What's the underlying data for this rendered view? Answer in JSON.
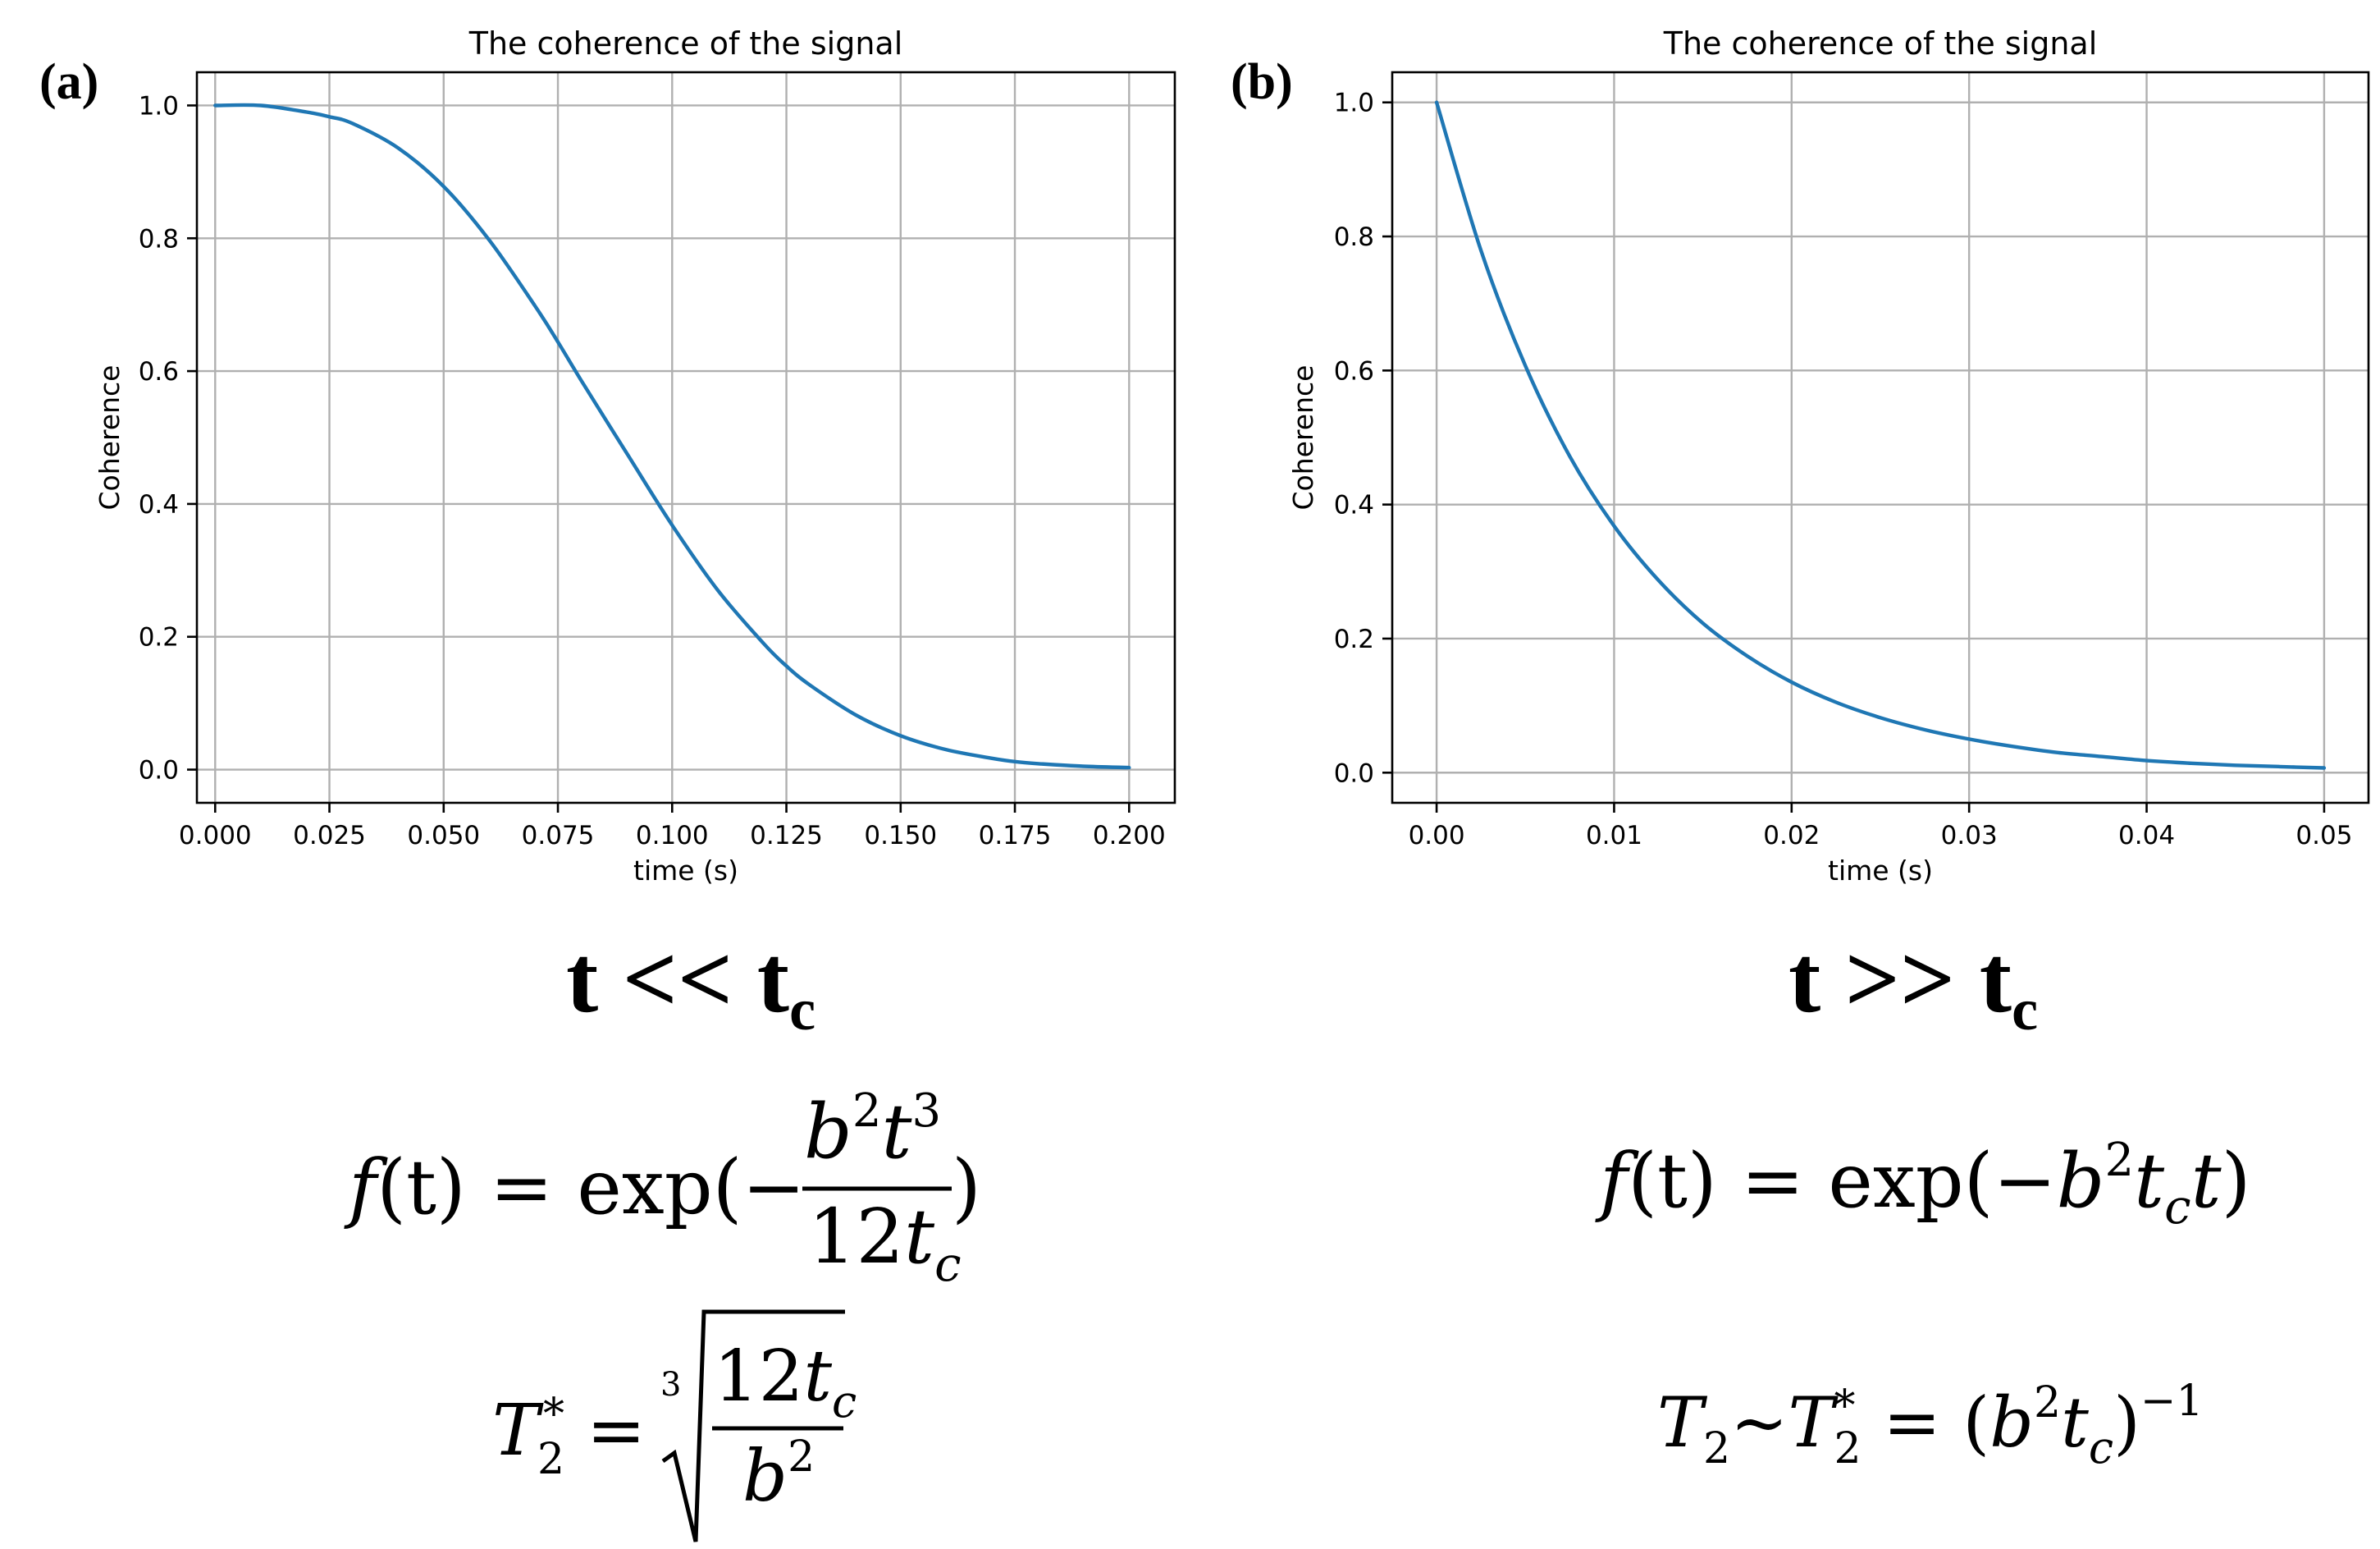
{
  "chart_data": [
    {
      "type": "line",
      "panel_label": "(a)",
      "title": "The coherence of the signal",
      "xlabel": "time (s)",
      "ylabel": "Coherence",
      "xlim": [
        -0.004,
        0.21
      ],
      "ylim": [
        -0.05,
        1.05
      ],
      "x_ticks": [
        "0.000",
        "0.025",
        "0.050",
        "0.075",
        "0.100",
        "0.125",
        "0.150",
        "0.175",
        "0.200"
      ],
      "x_tick_values": [
        0,
        0.025,
        0.05,
        0.075,
        0.1,
        0.125,
        0.15,
        0.175,
        0.2
      ],
      "y_ticks": [
        "0.0",
        "0.2",
        "0.4",
        "0.6",
        "0.8",
        "1.0"
      ],
      "y_tick_values": [
        0,
        0.2,
        0.4,
        0.6,
        0.8,
        1.0
      ],
      "grid": true,
      "series": [
        {
          "color": "#1f77b4",
          "x": [
            0,
            0.01,
            0.02,
            0.025,
            0.03,
            0.04,
            0.05,
            0.06,
            0.07,
            0.075,
            0.08,
            0.09,
            0.1,
            0.11,
            0.12,
            0.125,
            0.13,
            0.14,
            0.15,
            0.16,
            0.17,
            0.175,
            0.18,
            0.19,
            0.2
          ],
          "y": [
            1.0,
            1.0,
            0.99,
            0.983,
            0.973,
            0.936,
            0.878,
            0.797,
            0.698,
            0.644,
            0.587,
            0.477,
            0.368,
            0.27,
            0.19,
            0.156,
            0.128,
            0.083,
            0.051,
            0.03,
            0.017,
            0.012,
            0.009,
            0.005,
            0.003
          ]
        }
      ],
      "regime_main": "t << t",
      "regime_sub": "c",
      "equations": {
        "coherence": "f(t) = exp(−b²t³ / 12t_c)",
        "t2": "T₂* = ∛(12t_c / b²)"
      }
    },
    {
      "type": "line",
      "panel_label": "(b)",
      "title": "The coherence of the signal",
      "xlabel": "time (s)",
      "ylabel": "Coherence",
      "xlim": [
        -0.0025,
        0.0525
      ],
      "ylim": [
        -0.045,
        1.045
      ],
      "x_ticks": [
        "0.00",
        "0.01",
        "0.02",
        "0.03",
        "0.04",
        "0.05"
      ],
      "x_tick_values": [
        0,
        0.01,
        0.02,
        0.03,
        0.04,
        0.05
      ],
      "y_ticks": [
        "0.0",
        "0.2",
        "0.4",
        "0.6",
        "0.8",
        "1.0"
      ],
      "y_tick_values": [
        0,
        0.2,
        0.4,
        0.6,
        0.8,
        1.0
      ],
      "grid": true,
      "series": [
        {
          "color": "#1f77b4",
          "x": [
            0,
            0.0025,
            0.005,
            0.0075,
            0.01,
            0.0125,
            0.015,
            0.0175,
            0.02,
            0.0225,
            0.025,
            0.0275,
            0.03,
            0.0325,
            0.035,
            0.0375,
            0.04,
            0.0425,
            0.045,
            0.0475,
            0.05
          ],
          "y": [
            1.0,
            0.779,
            0.607,
            0.472,
            0.368,
            0.287,
            0.223,
            0.174,
            0.135,
            0.105,
            0.082,
            0.064,
            0.05,
            0.039,
            0.03,
            0.024,
            0.018,
            0.014,
            0.011,
            0.009,
            0.007
          ]
        }
      ],
      "regime_main": "t >> t",
      "regime_sub": "c",
      "equations": {
        "coherence": "f(t) = exp(−b²t_c t)",
        "t2": "T₂~T₂* = (b²t_c)⁻¹"
      }
    }
  ],
  "equation_parts": {
    "a_f_lhs": "f",
    "a_f_paren": "(t) = exp(−",
    "a_num_b": "b",
    "a_num_sup2": "2",
    "a_num_t": "t",
    "a_num_sup3": "3",
    "a_den_12": "12",
    "a_den_t": "t",
    "a_den_c": "c",
    "a_close": ")",
    "a_T": "T",
    "a_star": "*",
    "a_two": "2",
    "a_eq": "=",
    "a_root_index": "3",
    "a_rnum_12": "12",
    "a_rnum_t": "t",
    "a_rnum_c": "c",
    "a_rden_b": "b",
    "a_rden_2": "2",
    "b_f_lhs": "f",
    "b_f_rest": "(t) = exp(−",
    "b_b": "b",
    "b_sup2": "2",
    "b_t": "t",
    "b_c": "c",
    "b_t2": "t",
    "b_close": ")",
    "b_T": "T",
    "b_two": "2",
    "b_tilde": "~",
    "b_T2": "T",
    "b_star": "*",
    "b_two2": "2",
    "b_eq": " = (",
    "b_bb": "b",
    "b_sup2b": "2",
    "b_tt": "t",
    "b_cc": "c",
    "b_paren": ")",
    "b_inv": "−1"
  }
}
